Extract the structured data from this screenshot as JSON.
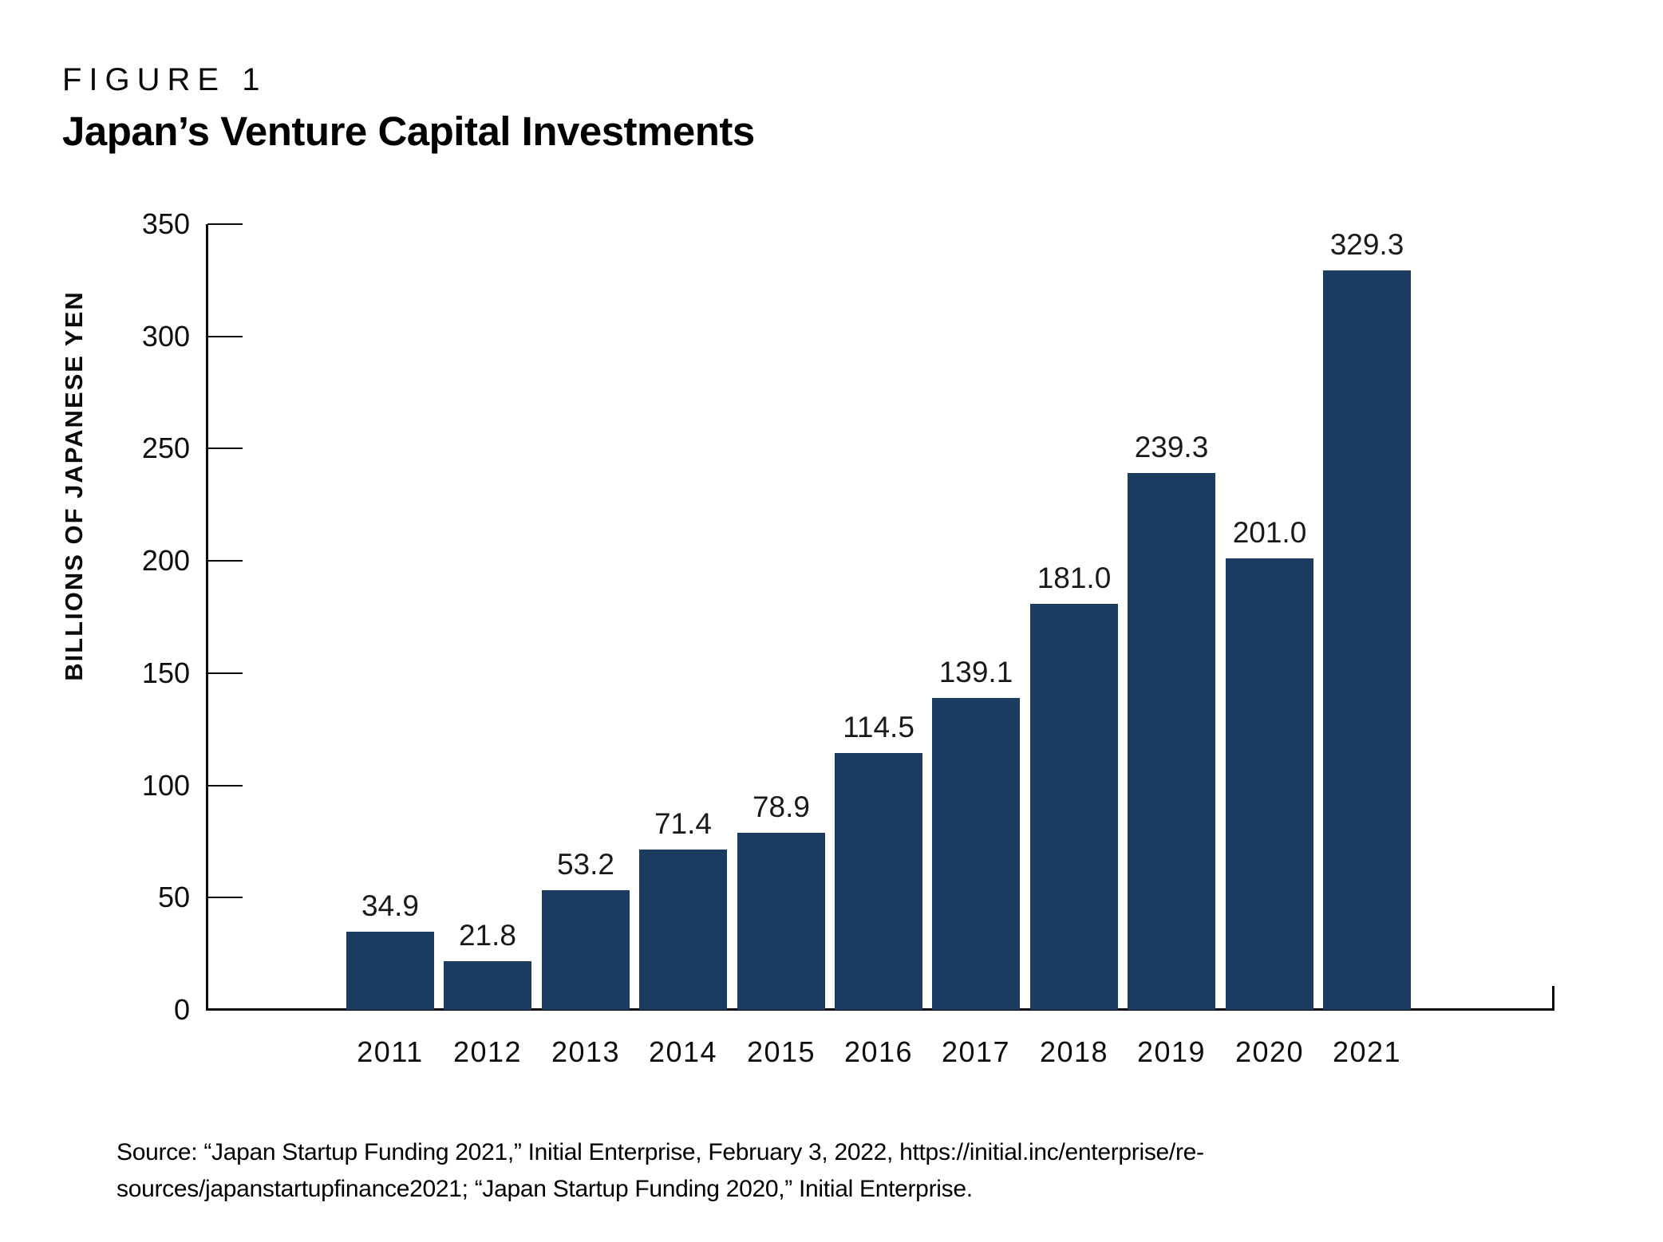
{
  "figure": {
    "label": "FIGURE 1",
    "title": "Japan’s Venture Capital Investments"
  },
  "chart_data": {
    "type": "bar",
    "title": "Japan’s Venture Capital Investments",
    "categories": [
      "2011",
      "2012",
      "2013",
      "2014",
      "2015",
      "2016",
      "2017",
      "2018",
      "2019",
      "2020",
      "2021"
    ],
    "values": [
      34.9,
      21.8,
      53.2,
      71.4,
      78.9,
      114.5,
      139.1,
      181.0,
      239.3,
      201.0,
      329.3
    ],
    "value_labels": [
      "34.9",
      "21.8",
      "53.2",
      "71.4",
      "78.9",
      "114.5",
      "139.1",
      "181.0",
      "239.3",
      "201.0",
      "329.3"
    ],
    "xlabel": "",
    "ylabel": "BILLIONS OF JAPANESE YEN",
    "ylim": [
      0,
      350
    ],
    "yticks": [
      0,
      50,
      100,
      150,
      200,
      250,
      300,
      350
    ],
    "grid": false,
    "legend_position": "none",
    "bar_color": "#1b3c60",
    "axis_color": "#0b0b0b",
    "text_color": "#0d0d0d"
  },
  "source": {
    "line1": "Source: “Japan Startup Funding 2021,” Initial Enterprise, February 3, 2022, https://initial.inc/enterprise/re-",
    "line2": "sources/japanstartupfinance2021; “Japan Startup Funding 2020,” Initial Enterprise."
  }
}
